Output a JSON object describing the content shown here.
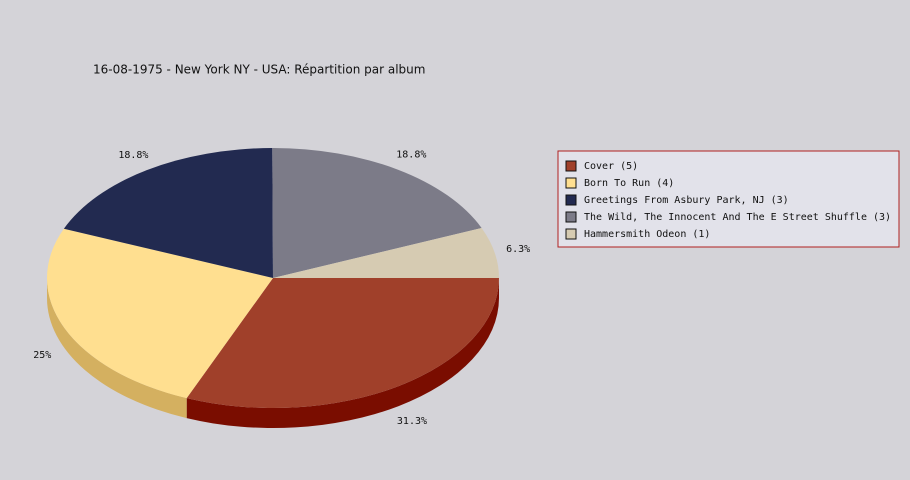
{
  "chart_data": {
    "type": "pie",
    "title": "16-08-1975 - New York NY - USA:  Répartition par album",
    "categories": [
      "Cover (5)",
      "Born To Run (4)",
      "Greetings From Asbury Park, NJ (3)",
      "The Wild, The Innocent And The E Street Shuffle (3)",
      "Hammersmith Odeon  (1)"
    ],
    "values": [
      31.3,
      25,
      18.8,
      18.8,
      6.3
    ],
    "value_labels": [
      "31.3%",
      "25%",
      "18.8%",
      "18.8%",
      "6.3%"
    ],
    "colors": [
      "#a0402a",
      "#ffdf90",
      "#222a50",
      "#7c7b88",
      "#d6cbb2"
    ],
    "side_colors": [
      "#7a0d00",
      "#d4b060",
      "#101530",
      "#55545f",
      "#b0a488"
    ],
    "legend": "right"
  }
}
